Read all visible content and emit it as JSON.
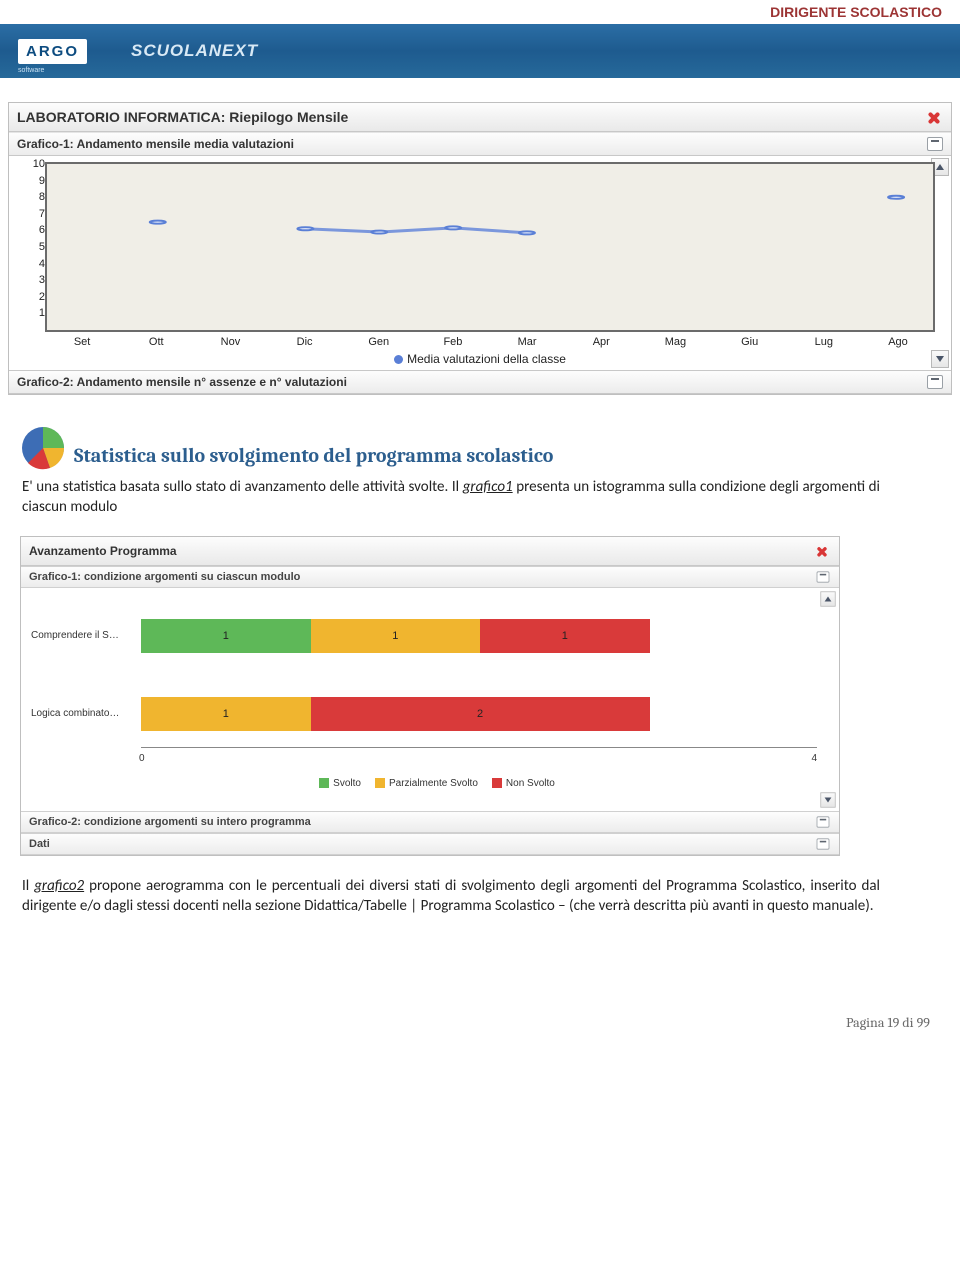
{
  "header_text": "DIRIGENTE SCOLASTICO",
  "logos": {
    "argo": "ARGO",
    "argo_sub": "software",
    "product": "SCUOLANEXT"
  },
  "window1": {
    "title": "LABORATORIO INFORMATICA: Riepilogo Mensile",
    "panel1_title": "Grafico-1: Andamento mensile media valutazioni",
    "panel2_title": "Grafico-2: Andamento mensile n° assenze e n° valutazioni",
    "legend": "Media valutazioni della classe",
    "chart": {
      "type": "line",
      "ylim": [
        0,
        10
      ],
      "yticks": [
        1,
        2,
        3,
        4,
        5,
        6,
        7,
        8,
        9,
        10
      ],
      "x_labels": [
        "Set",
        "Ott",
        "Nov",
        "Dic",
        "Gen",
        "Feb",
        "Mar",
        "Apr",
        "Mag",
        "Giu",
        "Lug",
        "Ago"
      ],
      "points": [
        {
          "x_idx": 1,
          "y": 6.5,
          "connected": false
        },
        {
          "x_idx": 3,
          "y": 6.1,
          "connected": true
        },
        {
          "x_idx": 4,
          "y": 5.9,
          "connected": true
        },
        {
          "x_idx": 5,
          "y": 6.15,
          "connected": true
        },
        {
          "x_idx": 6,
          "y": 5.85,
          "connected": true
        },
        {
          "x_idx": 11,
          "y": 8.0,
          "connected": false
        }
      ],
      "colors": {
        "line": "#7b97dc",
        "marker_fill": "#ffffff",
        "marker_stroke": "#5a7fd6",
        "plot_bg": "#f0eee7",
        "border": "#6b6b6b"
      }
    }
  },
  "section": {
    "title": "Statistica sullo svolgimento del programma scolastico",
    "para1_pre": "E' una statistica basata sullo stato di avanzamento delle attività svolte. Il ",
    "para1_em": "grafico1",
    "para1_post": " presenta un istogramma sulla condizione degli argomenti di ciascun modulo",
    "para2_pre": "Il ",
    "para2_em": "grafico2",
    "para2_post": " propone aerogramma con le percentuali dei diversi stati di svolgimento degli argomenti del Programma Scolastico, inserito dal dirigente e/o dagli stessi docenti nella sezione Didattica/Tabelle | Programma Scolastico – (che verrà descritta più avanti in questo manuale).",
    "pie_colors": [
      "#5eb858",
      "#f0b52f",
      "#d93a3a",
      "#3d6db5"
    ]
  },
  "window2": {
    "title": "Avanzamento Programma",
    "panel1_title": "Grafico-1: condizione argomenti su ciascun modulo",
    "panel2_title": "Grafico-2: condizione argomenti su intero programma",
    "dati_title": "Dati",
    "chart": {
      "type": "stacked_bar",
      "xlim": [
        0,
        4
      ],
      "x_ticks": [
        0,
        4
      ],
      "categories": [
        "Comprendere il S…",
        "Logica combinato…"
      ],
      "series": [
        {
          "name": "Svolto",
          "color": "#5eb858"
        },
        {
          "name": "Parzialmente Svolto",
          "color": "#f0b52f"
        },
        {
          "name": "Non Svolto",
          "color": "#d93a3a"
        }
      ],
      "rows": [
        {
          "segments": [
            {
              "series": 0,
              "value": 1
            },
            {
              "series": 1,
              "value": 1
            },
            {
              "series": 2,
              "value": 1
            }
          ],
          "total_ratio": 0.75
        },
        {
          "segments": [
            {
              "series": 1,
              "value": 1
            },
            {
              "series": 2,
              "value": 2
            }
          ],
          "total_ratio": 0.75
        }
      ]
    }
  },
  "footer": {
    "pagina": "Pagina ",
    "num": "19",
    "di": " di ",
    "tot": "99"
  }
}
